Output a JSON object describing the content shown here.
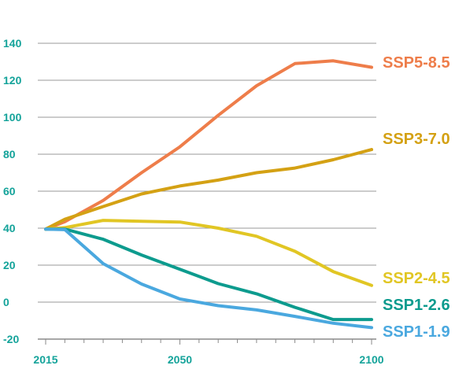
{
  "chart_data": {
    "type": "line",
    "title": "",
    "xlabel": "",
    "ylabel": "",
    "xlim": [
      2015,
      2100
    ],
    "ylim": [
      -20,
      140
    ],
    "yticks": [
      -20,
      0,
      20,
      40,
      60,
      80,
      100,
      120,
      140
    ],
    "xticks": [
      2015,
      2050,
      2100
    ],
    "x": [
      2015,
      2020,
      2030,
      2040,
      2050,
      2060,
      2070,
      2080,
      2090,
      2100
    ],
    "grid": true,
    "legend": "right, inline at line ends",
    "series": [
      {
        "name": "SSP5-8.5",
        "color": "#ee7d4a",
        "values": [
          39.5,
          43.5,
          55,
          70,
          84,
          101,
          117,
          129,
          130.5,
          127
        ]
      },
      {
        "name": "SSP3-7.0",
        "color": "#d4a114",
        "values": [
          39.5,
          44.8,
          51.7,
          58.5,
          62.8,
          66,
          70,
          72.5,
          77,
          82.5
        ]
      },
      {
        "name": "SSP2-4.5",
        "color": "#e1c624",
        "values": [
          39.5,
          40.3,
          44.2,
          43.7,
          43.3,
          40,
          35.6,
          27.5,
          16.5,
          9
        ]
      },
      {
        "name": "SSP1-2.6",
        "color": "#0d9b8e",
        "values": [
          39.5,
          39.5,
          34,
          25.5,
          17.8,
          10,
          4.5,
          -2.8,
          -9.4,
          -9.4
        ]
      },
      {
        "name": "SSP1-1.9",
        "color": "#4aa8df",
        "values": [
          39.5,
          39.2,
          20.8,
          9.8,
          1.7,
          -1.9,
          -4.2,
          -7.7,
          -11.4,
          -13.8
        ]
      }
    ]
  }
}
